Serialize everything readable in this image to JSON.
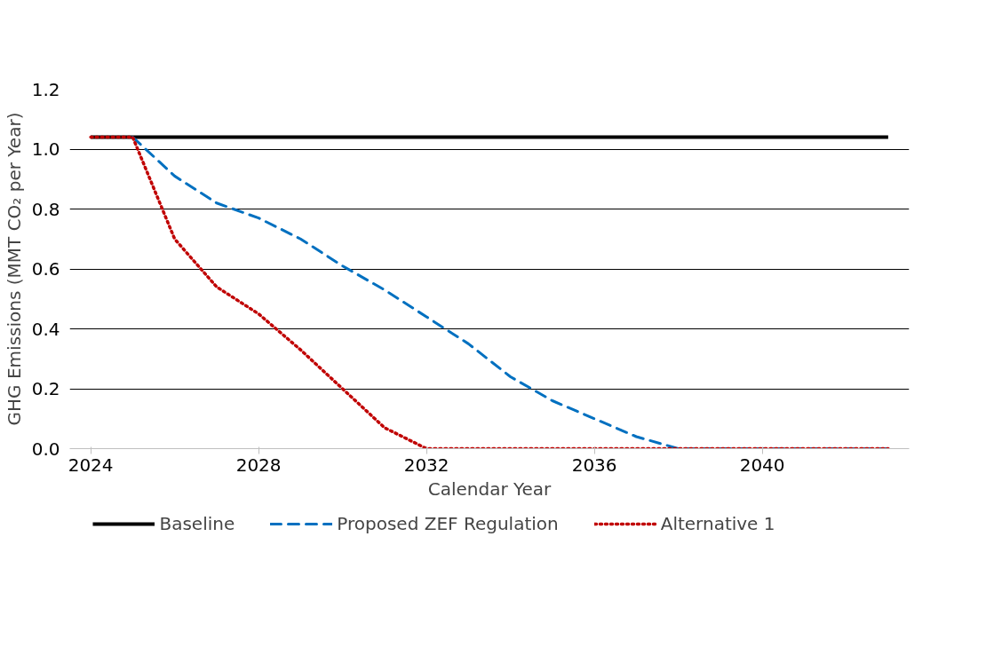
{
  "chart_data": {
    "type": "line",
    "xlabel": "Calendar Year",
    "ylabel": "GHG Emissions (MMT CO₂ per Year)",
    "x": [
      2024,
      2025,
      2026,
      2027,
      2028,
      2029,
      2030,
      2031,
      2032,
      2033,
      2034,
      2035,
      2036,
      2037,
      2038,
      2039,
      2040,
      2041,
      2042,
      2043
    ],
    "series": [
      {
        "name": "Baseline",
        "color": "#000000",
        "line_style": "solid",
        "values": [
          1.04,
          1.04,
          1.04,
          1.04,
          1.04,
          1.04,
          1.04,
          1.04,
          1.04,
          1.04,
          1.04,
          1.04,
          1.04,
          1.04,
          1.04,
          1.04,
          1.04,
          1.04,
          1.04,
          1.04
        ]
      },
      {
        "name": "Proposed ZEF Regulation",
        "color": "#0070c0",
        "line_style": "dashed",
        "values": [
          null,
          1.04,
          0.91,
          0.82,
          0.77,
          0.7,
          0.61,
          0.53,
          0.44,
          0.35,
          0.24,
          0.16,
          0.1,
          0.04,
          0.0,
          0.0,
          0.0,
          0.0,
          0.0,
          0.0
        ]
      },
      {
        "name": "Alternative 1",
        "color": "#c00000",
        "line_style": "dotted",
        "values": [
          1.04,
          1.04,
          0.7,
          0.54,
          0.45,
          0.33,
          0.2,
          0.07,
          0.0,
          0.0,
          0.0,
          0.0,
          0.0,
          0.0,
          0.0,
          0.0,
          0.0,
          0.0,
          0.0,
          0.0
        ]
      }
    ],
    "xlim": [
      2023.5,
      2043.5
    ],
    "xticks": [
      2024,
      2028,
      2032,
      2036,
      2040
    ],
    "ylim": [
      0,
      1.2
    ],
    "yticks": [
      {
        "value": 0,
        "label": "0.0"
      },
      {
        "value": 0.2,
        "label": "0.2"
      },
      {
        "value": 0.4,
        "label": "0.4"
      },
      {
        "value": 0.6,
        "label": "0.6"
      },
      {
        "value": 0.8,
        "label": "0.8"
      },
      {
        "value": 1.0,
        "label": "1.0"
      },
      {
        "value": 1.2,
        "label": "1.2"
      }
    ],
    "grid": "y",
    "legend": "bottom",
    "marker": "none"
  }
}
